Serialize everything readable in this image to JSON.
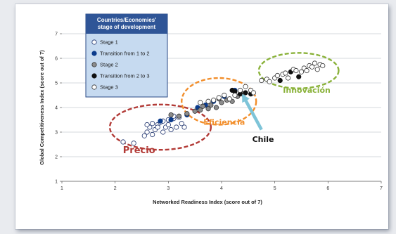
{
  "chart_data": {
    "type": "scatter",
    "xlabel": "Networked Readiness Index (score out of 7)",
    "ylabel": "Global Competitiveness Index (score out of 7)",
    "xlim": [
      1,
      7
    ],
    "ylim": [
      1,
      7
    ],
    "xticks": [
      "1",
      "2",
      "3",
      "4",
      "5",
      "6",
      "7"
    ],
    "yticks": [
      "1",
      "2",
      "3",
      "4",
      "5",
      "6",
      "7"
    ],
    "grid": "horizontal",
    "legend": {
      "title_lines": [
        "Countries/Economies'",
        "stage of development"
      ],
      "placement": "top-left",
      "entries": [
        {
          "name": "Stage 1",
          "fill": "#ffffff",
          "stroke": "#1a2f6b"
        },
        {
          "name": "Transition from 1 to 2",
          "fill": "#0b3b8c",
          "stroke": "#0b3b8c"
        },
        {
          "name": "Stage 2",
          "fill": "#8c8c8c",
          "stroke": "#333333"
        },
        {
          "name": "Transition from 2 to 3",
          "fill": "#111111",
          "stroke": "#111111"
        },
        {
          "name": "Stage 3",
          "fill": "#ffffff",
          "stroke": "#333333"
        }
      ]
    },
    "series": [
      {
        "name": "Stage 1",
        "points": [
          [
            2.15,
            2.6
          ],
          [
            2.35,
            2.55
          ],
          [
            2.55,
            2.85
          ],
          [
            2.6,
            3.0
          ],
          [
            2.65,
            3.2
          ],
          [
            2.7,
            2.9
          ],
          [
            2.75,
            3.1
          ],
          [
            2.8,
            3.3
          ],
          [
            2.85,
            3.4
          ],
          [
            2.9,
            3.0
          ],
          [
            2.95,
            3.2
          ],
          [
            3.0,
            3.3
          ],
          [
            3.05,
            3.1
          ],
          [
            3.1,
            3.55
          ],
          [
            3.15,
            3.2
          ],
          [
            3.2,
            3.6
          ],
          [
            3.25,
            3.35
          ],
          [
            3.3,
            3.2
          ],
          [
            2.6,
            3.3
          ],
          [
            2.7,
            3.35
          ],
          [
            2.8,
            3.2
          ],
          [
            2.9,
            3.45
          ],
          [
            3.0,
            3.5
          ],
          [
            3.1,
            3.65
          ]
        ]
      },
      {
        "name": "Transition from 1 to 2",
        "points": [
          [
            2.85,
            3.45
          ],
          [
            3.05,
            3.5
          ],
          [
            3.35,
            3.7
          ],
          [
            3.55,
            4.0
          ],
          [
            3.7,
            4.1
          ],
          [
            3.85,
            4.25
          ],
          [
            4.05,
            4.45
          ],
          [
            4.25,
            4.7
          ]
        ]
      },
      {
        "name": "Stage 2",
        "points": [
          [
            3.05,
            3.7
          ],
          [
            3.2,
            3.65
          ],
          [
            3.35,
            3.75
          ],
          [
            3.5,
            3.85
          ],
          [
            3.6,
            3.9
          ],
          [
            3.65,
            4.05
          ],
          [
            3.75,
            3.95
          ],
          [
            3.8,
            4.1
          ],
          [
            3.9,
            4.0
          ],
          [
            4.0,
            4.2
          ],
          [
            4.1,
            4.3
          ],
          [
            4.2,
            4.25
          ],
          [
            4.3,
            4.45
          ],
          [
            4.4,
            4.55
          ],
          [
            3.95,
            4.35
          ]
        ]
      },
      {
        "name": "Transition from 2 to 3",
        "points": [
          [
            4.2,
            4.7
          ],
          [
            4.25,
            4.65
          ],
          [
            4.35,
            4.55
          ],
          [
            4.45,
            4.6
          ],
          [
            4.55,
            4.55
          ],
          [
            5.1,
            5.1
          ],
          [
            5.3,
            5.45
          ],
          [
            5.45,
            5.25
          ]
        ]
      },
      {
        "name": "Stage 3",
        "points": [
          [
            3.6,
            4.2
          ],
          [
            3.75,
            4.25
          ],
          [
            3.85,
            4.3
          ],
          [
            3.95,
            4.4
          ],
          [
            4.05,
            4.5
          ],
          [
            4.15,
            4.35
          ],
          [
            4.25,
            4.5
          ],
          [
            4.35,
            4.7
          ],
          [
            4.45,
            4.85
          ],
          [
            4.55,
            4.7
          ],
          [
            4.6,
            4.6
          ],
          [
            4.75,
            5.1
          ],
          [
            4.85,
            5.15
          ],
          [
            5.0,
            5.2
          ],
          [
            5.05,
            5.3
          ],
          [
            5.15,
            5.35
          ],
          [
            5.2,
            5.4
          ],
          [
            5.25,
            5.2
          ],
          [
            5.35,
            5.55
          ],
          [
            5.4,
            5.5
          ],
          [
            5.5,
            5.45
          ],
          [
            5.55,
            5.6
          ],
          [
            5.6,
            5.5
          ],
          [
            5.65,
            5.7
          ],
          [
            5.7,
            5.65
          ],
          [
            5.75,
            5.8
          ],
          [
            5.8,
            5.55
          ],
          [
            5.85,
            5.75
          ],
          [
            5.9,
            5.7
          ],
          [
            4.9,
            5.05
          ]
        ]
      }
    ],
    "annotations": [
      {
        "text": "Precio",
        "color": "#b23a36",
        "ellipse": {
          "cx": 2.85,
          "cy": 3.2,
          "rx": 0.95,
          "ry": 0.92
        },
        "text_pos": [
          2.45,
          2.15
        ],
        "font": 13
      },
      {
        "text": "Eficiencia",
        "color": "#f28e2b",
        "ellipse": {
          "cx": 3.95,
          "cy": 4.25,
          "rx": 0.7,
          "ry": 0.95
        },
        "text_pos": [
          4.05,
          3.3
        ],
        "font": 11
      },
      {
        "text": "Innovación",
        "color": "#8ab23a",
        "ellipse": {
          "cx": 5.45,
          "cy": 5.5,
          "rx": 0.75,
          "ry": 0.72
        },
        "text_pos": [
          5.6,
          4.6
        ],
        "font": 11
      },
      {
        "text": "Chile",
        "color": "#111111",
        "text_pos": [
          4.78,
          2.6
        ],
        "font": 11,
        "arrow": {
          "from": [
            4.75,
            3.1
          ],
          "to": [
            4.4,
            4.5
          ],
          "color": "#7ec4d8"
        }
      }
    ]
  }
}
